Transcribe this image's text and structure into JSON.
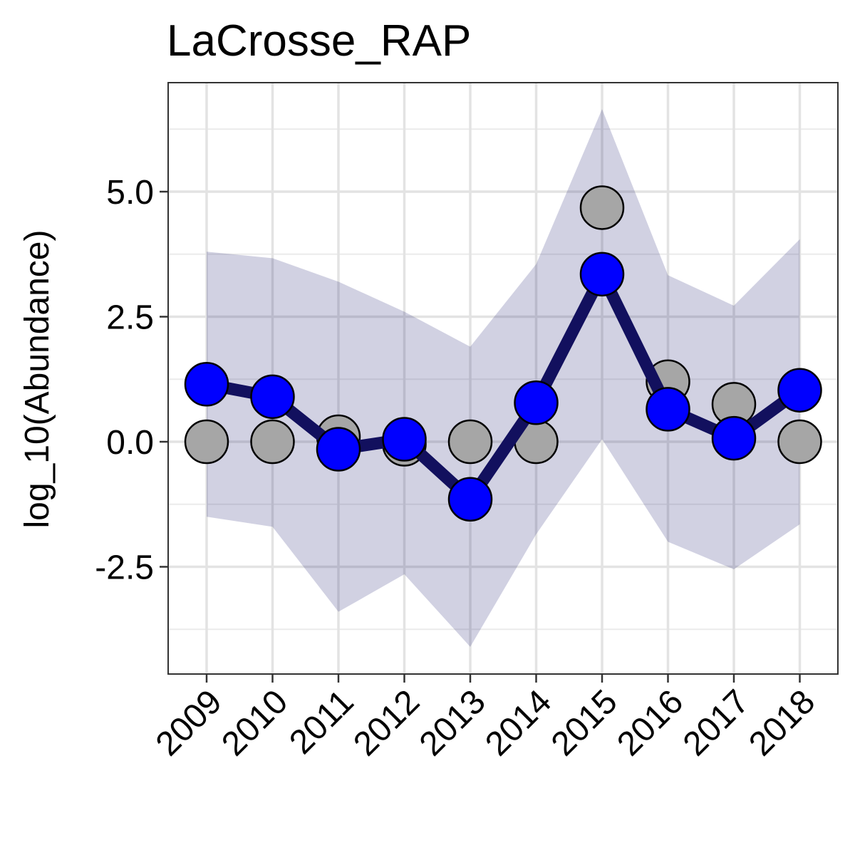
{
  "chart_data": {
    "type": "line",
    "title": "LaCrosse_RAP",
    "xlabel": "",
    "ylabel": "log_10(Abundance)",
    "x": [
      "2009",
      "2010",
      "2011",
      "2012",
      "2013",
      "2014",
      "2015",
      "2016",
      "2017",
      "2018"
    ],
    "ylim": [
      -4.5,
      7.2
    ],
    "y_ticks": [
      -2.5,
      0.0,
      2.5,
      5.0
    ],
    "y_tick_labels": [
      "-2.5",
      "0.0",
      "2.5",
      "5.0"
    ],
    "grid": true,
    "series": [
      {
        "kind": "band",
        "color": "#1a1a6e",
        "opacity": 0.2,
        "lower": [
          -1.5,
          -1.7,
          -3.4,
          -2.65,
          -4.1,
          -1.85,
          0.05,
          -2.0,
          -2.55,
          -1.65
        ],
        "upper": [
          3.8,
          3.67,
          3.2,
          2.6,
          1.9,
          3.55,
          6.65,
          3.33,
          2.72,
          4.05
        ]
      },
      {
        "kind": "points",
        "color": "#a6a6a6",
        "values": [
          0.0,
          0.0,
          0.1,
          -0.05,
          0.0,
          0.0,
          4.68,
          1.2,
          0.75,
          0.0
        ]
      },
      {
        "kind": "line-points",
        "line_color": "#12105e",
        "point_color": "#0000ff",
        "values": [
          1.15,
          0.9,
          -0.15,
          0.05,
          -1.15,
          0.78,
          3.35,
          0.65,
          0.07,
          1.03
        ]
      }
    ]
  }
}
